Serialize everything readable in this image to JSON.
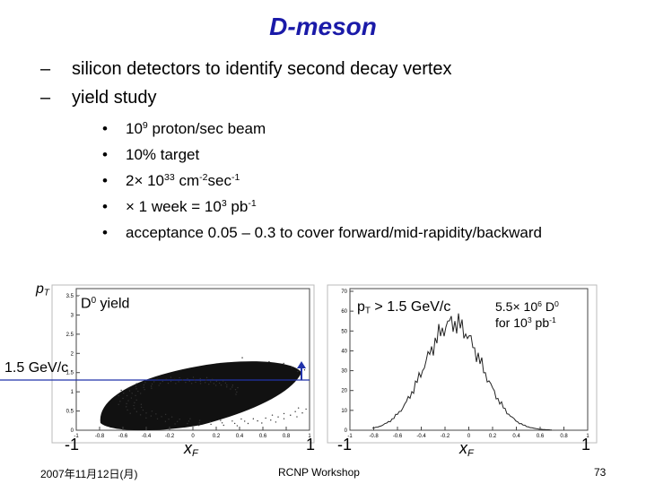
{
  "title": "D-meson",
  "bullets": [
    "silicon detectors to identify second decay vertex",
    "yield study"
  ],
  "sub_bullets": [
    [
      "10",
      "9",
      " proton/sec beam"
    ],
    [
      "10% target"
    ],
    [
      "2× 10",
      "33",
      " cm",
      "-2",
      "sec",
      "-1"
    ],
    [
      "× 1 week = 10",
      "3",
      " pb",
      "-1"
    ],
    [
      "acceptance 0.05 – 0.3 to cover forward/mid-rapidity/backward"
    ]
  ],
  "plots": [
    {
      "y_label": [
        "p",
        "T"
      ],
      "legend": [
        "D",
        "0",
        " yield"
      ],
      "cut_label": "1.5 GeV/c",
      "x_label": [
        "x",
        "F"
      ],
      "x_min": "-1",
      "x_max": "1",
      "yticks": [
        0,
        0.5,
        1,
        1.5,
        2,
        2.5,
        3,
        3.5
      ],
      "xticks": [
        -1,
        -0.8,
        -0.6,
        -0.4,
        -0.2,
        0,
        0.2,
        0.4,
        0.6,
        0.8,
        1
      ]
    },
    {
      "cut_label": [
        "p",
        "T",
        " > 1.5 GeV/c"
      ],
      "yield": [
        "5.5× 10",
        "6",
        " D",
        "0"
      ],
      "lumi": [
        "for 10",
        "3",
        " pb",
        "-1"
      ],
      "x_label": [
        "x",
        "F"
      ],
      "x_min": "-1",
      "x_max": "1",
      "yticks": [
        0,
        10,
        20,
        30,
        40,
        50,
        60,
        70
      ],
      "xticks": [
        -1,
        -0.8,
        -0.6,
        -0.4,
        -0.2,
        0,
        0.2,
        0.4,
        0.6,
        0.8,
        1
      ]
    }
  ],
  "footer": {
    "date": "2007年11月12日(月)",
    "event": "RCNP Workshop",
    "page": "73"
  }
}
